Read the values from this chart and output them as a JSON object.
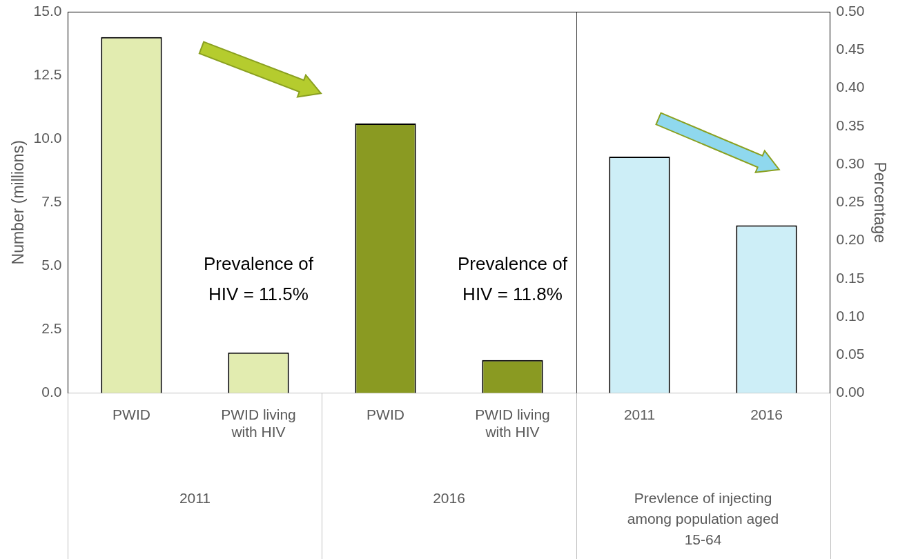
{
  "chart_data": {
    "type": "bar",
    "ylabel": "Number (millions)",
    "y2label": "Percentage",
    "categories": [
      "PWID",
      "PWID living with HIV",
      "PWID",
      "PWID living with HIV",
      "2011",
      "2016"
    ],
    "series": [
      {
        "colors": [
          "#e2ecb0",
          "#e2ecb0",
          "#8a9a22",
          "#8a9a22",
          "#cdeef7",
          "#cdeef7"
        ],
        "values": [
          14.0,
          1.6,
          10.6,
          1.3,
          null,
          null
        ]
      },
      {
        "axis": "y2",
        "color": "#cdeef7",
        "values": [
          null,
          null,
          null,
          null,
          0.31,
          0.22
        ]
      }
    ],
    "ylim": [
      0,
      15
    ],
    "yticks": [
      {
        "value": 0,
        "label": "0.0"
      },
      {
        "value": 2.5,
        "label": "2.5"
      },
      {
        "value": 5,
        "label": "5.0"
      },
      {
        "value": 7.5,
        "label": "7.5"
      },
      {
        "value": 10,
        "label": "10.0"
      },
      {
        "value": 12.5,
        "label": "12.5"
      },
      {
        "value": 15,
        "label": "15.0"
      }
    ],
    "y2lim": [
      0,
      0.5
    ],
    "y2ticks": [
      {
        "value": 0,
        "label": "0.00"
      },
      {
        "value": 0.05,
        "label": "0.05"
      },
      {
        "value": 0.1,
        "label": "0.10"
      },
      {
        "value": 0.15,
        "label": "0.15"
      },
      {
        "value": 0.2,
        "label": "0.20"
      },
      {
        "value": 0.25,
        "label": "0.25"
      },
      {
        "value": 0.3,
        "label": "0.30"
      },
      {
        "value": 0.35,
        "label": "0.35"
      },
      {
        "value": 0.4,
        "label": "0.40"
      },
      {
        "value": 0.45,
        "label": "0.45"
      },
      {
        "value": 0.5,
        "label": "0.50"
      }
    ],
    "grid": false,
    "legend": false,
    "annotations": [
      "Prevalence of HIV = 11.5%",
      "Prevalence of HIV = 11.8%",
      "2011",
      "2016",
      "Prevlence of injecting among population aged 15-64"
    ]
  }
}
